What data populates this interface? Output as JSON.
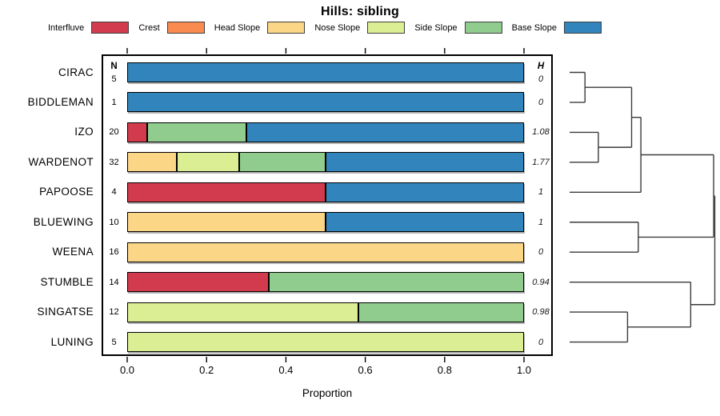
{
  "title": "Hills: sibling",
  "legend": [
    {
      "label": "Interfluve",
      "color": "#d23b4e"
    },
    {
      "label": "Crest",
      "color": "#f98a50"
    },
    {
      "label": "Head Slope",
      "color": "#fbd687"
    },
    {
      "label": "Nose Slope",
      "color": "#dcee93"
    },
    {
      "label": "Side Slope",
      "color": "#8fcc8d"
    },
    {
      "label": "Base Slope",
      "color": "#3285bc"
    }
  ],
  "columns": {
    "n_header": "N",
    "h_header": "H"
  },
  "xlabel": "Proportion",
  "x_ticks": [
    "0.0",
    "0.2",
    "0.4",
    "0.6",
    "0.8",
    "1.0"
  ],
  "chart_data": {
    "type": "bar",
    "stacked": true,
    "orientation": "horizontal",
    "title": "Hills: sibling",
    "xlabel": "Proportion",
    "xlim": [
      0,
      1
    ],
    "grid": false,
    "legend_position": "top",
    "categories": [
      "CIRAC",
      "BIDDLEMAN",
      "IZO",
      "WARDENOT",
      "PAPOOSE",
      "BLUEWING",
      "WEENA",
      "STUMBLE",
      "SINGATSE",
      "LUNING"
    ],
    "n_values": [
      "5",
      "1",
      "20",
      "32",
      "4",
      "10",
      "16",
      "14",
      "12",
      "5"
    ],
    "h_values": [
      "0",
      "0",
      "1.08",
      "1.77",
      "1",
      "1",
      "0",
      "0.94",
      "0.98",
      "0"
    ],
    "series": [
      {
        "name": "Interfluve",
        "values": [
          0,
          0,
          0.05,
          0,
          0.5,
          0,
          0,
          0.3571,
          0,
          0
        ]
      },
      {
        "name": "Crest",
        "values": [
          0,
          0,
          0,
          0,
          0,
          0,
          0,
          0,
          0,
          0
        ]
      },
      {
        "name": "Head Slope",
        "values": [
          0,
          0,
          0,
          0.125,
          0,
          0.5,
          1,
          0,
          0,
          0
        ]
      },
      {
        "name": "Nose Slope",
        "values": [
          0,
          0,
          0,
          0.15625,
          0,
          0,
          0,
          0,
          0.5833,
          1
        ]
      },
      {
        "name": "Side Slope",
        "values": [
          0,
          0,
          0.25,
          0.21875,
          0,
          0,
          0,
          0.6429,
          0.4167,
          0
        ]
      },
      {
        "name": "Base Slope",
        "values": [
          1,
          1,
          0.7,
          0.5,
          0.5,
          0.5,
          0,
          0,
          0,
          0
        ]
      }
    ]
  },
  "dendrogram": {
    "orientation": "right",
    "tree": {
      "height": 1.0,
      "children": [
        {
          "height": 0.992,
          "children": [
            {
              "height": 0.491,
              "children": [
                {
                  "height": 0.427,
                  "children": [
                    {
                      "height": 0.106,
                      "children": [
                        {
                          "leaf": "CIRAC"
                        },
                        {
                          "leaf": "BIDDLEMAN"
                        }
                      ]
                    },
                    {
                      "height": 0.198,
                      "children": [
                        {
                          "leaf": "IZO"
                        },
                        {
                          "leaf": "WARDENOT"
                        }
                      ]
                    }
                  ]
                },
                {
                  "leaf": "PAPOOSE"
                }
              ]
            },
            {
              "height": 0.473,
              "children": [
                {
                  "leaf": "BLUEWING"
                },
                {
                  "leaf": "WEENA"
                }
              ]
            }
          ]
        },
        {
          "height": 0.834,
          "children": [
            {
              "leaf": "STUMBLE"
            },
            {
              "height": 0.399,
              "children": [
                {
                  "leaf": "SINGATSE"
                },
                {
                  "leaf": "LUNING"
                }
              ]
            }
          ]
        }
      ]
    }
  }
}
